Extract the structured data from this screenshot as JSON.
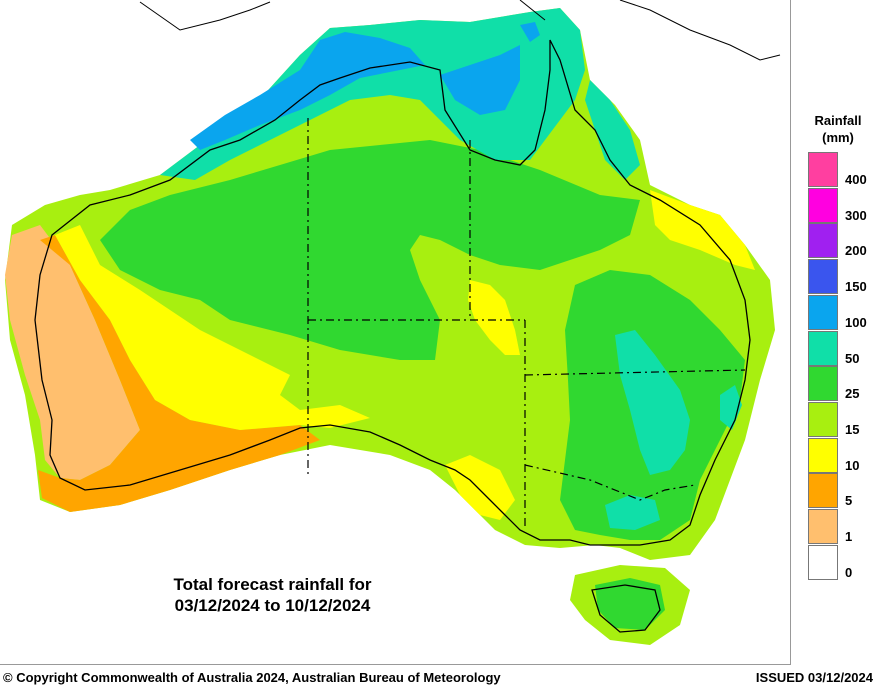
{
  "map": {
    "region": "Australia",
    "caption_line1": "Total forecast rainfall for",
    "caption_line2": "03/12/2024 to 10/12/2024",
    "period_start": "03/12/2024",
    "period_end": "10/12/2024"
  },
  "legend": {
    "title_line1": "Rainfall",
    "title_line2": "(mm)",
    "bins": [
      {
        "label": "400",
        "color": "#ff3fa0"
      },
      {
        "label": "300",
        "color": "#ff00e0"
      },
      {
        "label": "200",
        "color": "#a020f0"
      },
      {
        "label": "150",
        "color": "#3a55ee"
      },
      {
        "label": "100",
        "color": "#0aa5ee"
      },
      {
        "label": "50",
        "color": "#10dfa8"
      },
      {
        "label": "25",
        "color": "#30d830"
      },
      {
        "label": "15",
        "color": "#a8ef10"
      },
      {
        "label": "10",
        "color": "#ffff00"
      },
      {
        "label": "5",
        "color": "#ffa500"
      },
      {
        "label": "1",
        "color": "#ffbf6e"
      },
      {
        "label": "0",
        "color": "#ffffff"
      }
    ]
  },
  "footer": {
    "copyright": "© Copyright Commonwealth of Australia 2024, Australian Bureau of Meteorology",
    "issued": "ISSUED 03/12/2024"
  }
}
